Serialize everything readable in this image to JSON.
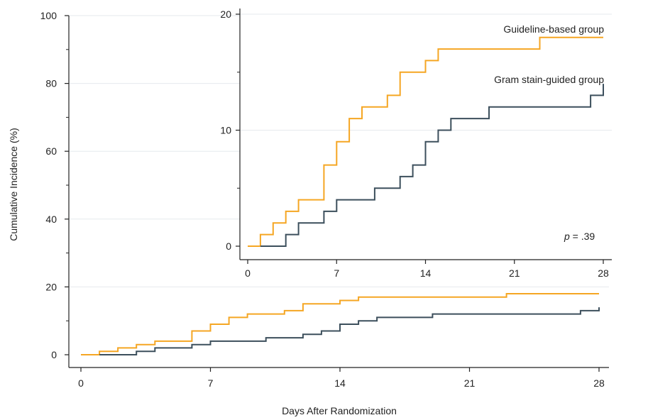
{
  "chart_data": [
    {
      "name": "main-plot",
      "type": "line",
      "step": true,
      "xlabel": "Days After Randomization",
      "ylabel": "Cumulative Incidence (%)",
      "xlim": [
        0,
        28
      ],
      "ylim": [
        0,
        100
      ],
      "xticks": [
        0,
        7,
        14,
        21,
        28
      ],
      "yticks": [
        0,
        20,
        40,
        60,
        80,
        100
      ],
      "grid": true,
      "series": [
        {
          "color": "#F5A623",
          "x": [
            0,
            1,
            2,
            3,
            4,
            6,
            7,
            8,
            9,
            11,
            12,
            14,
            15,
            23,
            28
          ],
          "y": [
            0,
            1,
            2,
            3,
            4,
            7,
            9,
            11,
            12,
            13,
            15,
            16,
            17,
            18,
            18
          ]
        },
        {
          "color": "#3C4F5C",
          "x": [
            1,
            3,
            4,
            6,
            7,
            10,
            12,
            13,
            14,
            15,
            16,
            19,
            27,
            28
          ],
          "y": [
            0,
            1,
            2,
            3,
            4,
            5,
            6,
            7,
            9,
            10,
            11,
            12,
            13,
            14
          ]
        }
      ]
    },
    {
      "name": "inset-plot",
      "type": "line",
      "step": true,
      "xlim": [
        0,
        28
      ],
      "ylim": [
        0,
        20
      ],
      "xticks": [
        0,
        7,
        14,
        21,
        28
      ],
      "yticks": [
        0,
        10,
        20
      ],
      "grid": true,
      "annotation": {
        "prefix": "p",
        "value": " = .39"
      },
      "series": [
        {
          "name": "Guideline-based group",
          "color": "#F5A623",
          "x": [
            0,
            1,
            2,
            3,
            4,
            6,
            7,
            8,
            9,
            11,
            12,
            14,
            15,
            23,
            28
          ],
          "y": [
            0,
            1,
            2,
            3,
            4,
            7,
            9,
            11,
            12,
            13,
            15,
            16,
            17,
            18,
            18
          ]
        },
        {
          "name": "Gram stain-guided group",
          "color": "#3C4F5C",
          "x": [
            1,
            3,
            4,
            6,
            7,
            10,
            12,
            13,
            14,
            15,
            16,
            19,
            27,
            28
          ],
          "y": [
            0,
            1,
            2,
            3,
            4,
            5,
            6,
            7,
            9,
            10,
            11,
            12,
            13,
            14
          ]
        }
      ]
    }
  ]
}
